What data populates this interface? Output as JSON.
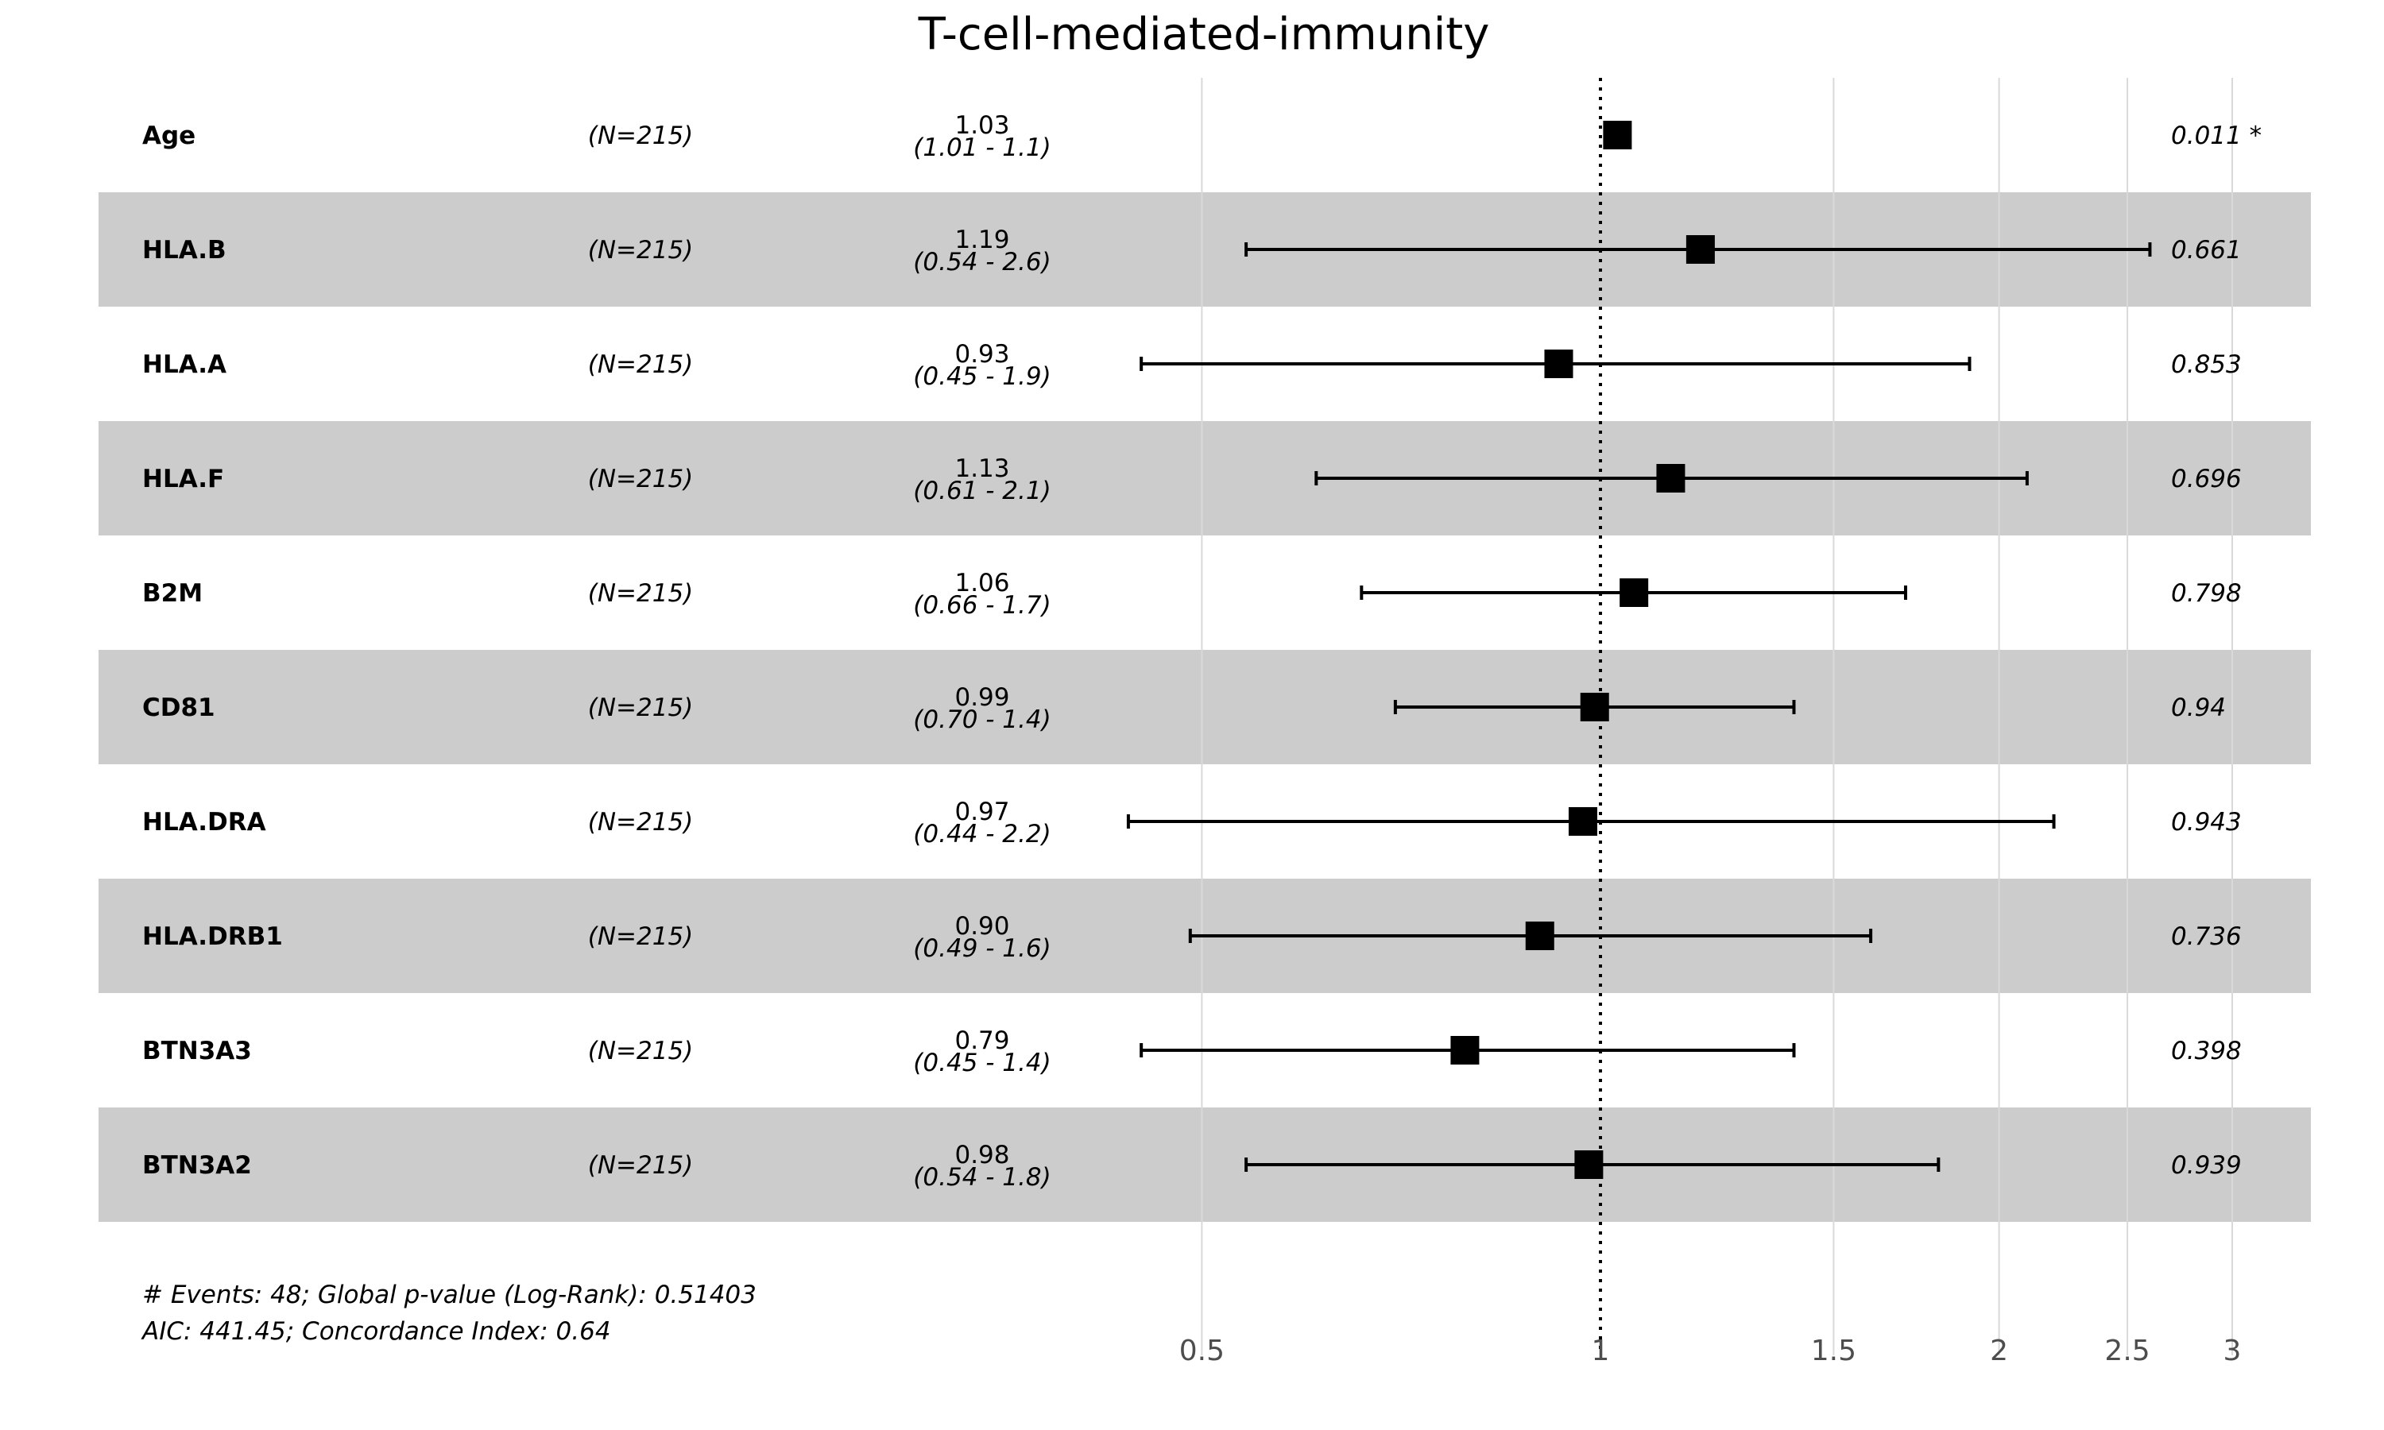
{
  "chart_data": {
    "type": "forest",
    "title": "T-cell-mediated-immunity",
    "x_scale": "log",
    "xlim": [
      0.45,
      3.3
    ],
    "reference_line": 1,
    "x_ticks": [
      {
        "value": 0.5,
        "label": "0.5"
      },
      {
        "value": 1,
        "label": "1"
      },
      {
        "value": 1.5,
        "label": "1.5"
      },
      {
        "value": 2,
        "label": "2"
      },
      {
        "value": 2.5,
        "label": "2.5"
      },
      {
        "value": 3,
        "label": "3"
      }
    ],
    "rows": [
      {
        "variable": "Age",
        "n": "(N=215)",
        "hr": 1.03,
        "lower": 1.01,
        "upper": 1.05,
        "hr_text": "1.03",
        "ci_text": "(1.01 - 1.1)",
        "p_text": "0.011 *"
      },
      {
        "variable": "HLA.B",
        "n": "(N=215)",
        "hr": 1.19,
        "lower": 0.54,
        "upper": 2.6,
        "hr_text": "1.19",
        "ci_text": "(0.54 - 2.6)",
        "p_text": "0.661"
      },
      {
        "variable": "HLA.A",
        "n": "(N=215)",
        "hr": 0.93,
        "lower": 0.45,
        "upper": 1.9,
        "hr_text": "0.93",
        "ci_text": "(0.45 - 1.9)",
        "p_text": "0.853"
      },
      {
        "variable": "HLA.F",
        "n": "(N=215)",
        "hr": 1.13,
        "lower": 0.61,
        "upper": 2.1,
        "hr_text": "1.13",
        "ci_text": "(0.61 - 2.1)",
        "p_text": "0.696"
      },
      {
        "variable": "B2M",
        "n": "(N=215)",
        "hr": 1.06,
        "lower": 0.66,
        "upper": 1.7,
        "hr_text": "1.06",
        "ci_text": "(0.66 - 1.7)",
        "p_text": "0.798"
      },
      {
        "variable": "CD81",
        "n": "(N=215)",
        "hr": 0.99,
        "lower": 0.7,
        "upper": 1.4,
        "hr_text": "0.99",
        "ci_text": "(0.70 - 1.4)",
        "p_text": "0.94"
      },
      {
        "variable": "HLA.DRA",
        "n": "(N=215)",
        "hr": 0.97,
        "lower": 0.44,
        "upper": 2.2,
        "hr_text": "0.97",
        "ci_text": "(0.44 - 2.2)",
        "p_text": "0.943"
      },
      {
        "variable": "HLA.DRB1",
        "n": "(N=215)",
        "hr": 0.9,
        "lower": 0.49,
        "upper": 1.6,
        "hr_text": "0.90",
        "ci_text": "(0.49 - 1.6)",
        "p_text": "0.736"
      },
      {
        "variable": "BTN3A3",
        "n": "(N=215)",
        "hr": 0.79,
        "lower": 0.45,
        "upper": 1.4,
        "hr_text": "0.79",
        "ci_text": "(0.45 - 1.4)",
        "p_text": "0.398"
      },
      {
        "variable": "BTN3A2",
        "n": "(N=215)",
        "hr": 0.98,
        "lower": 0.54,
        "upper": 1.8,
        "hr_text": "0.98",
        "ci_text": "(0.54 - 1.8)",
        "p_text": "0.939"
      }
    ],
    "footnotes": [
      "# Events: 48; Global p-value (Log-Rank): 0.51403",
      "AIC: 441.45; Concordance Index: 0.64"
    ],
    "colors": {
      "band": "#cccccc",
      "grid": "#d9d9d9",
      "marker": "#000000",
      "tick_text": "#4d4d4d"
    }
  }
}
